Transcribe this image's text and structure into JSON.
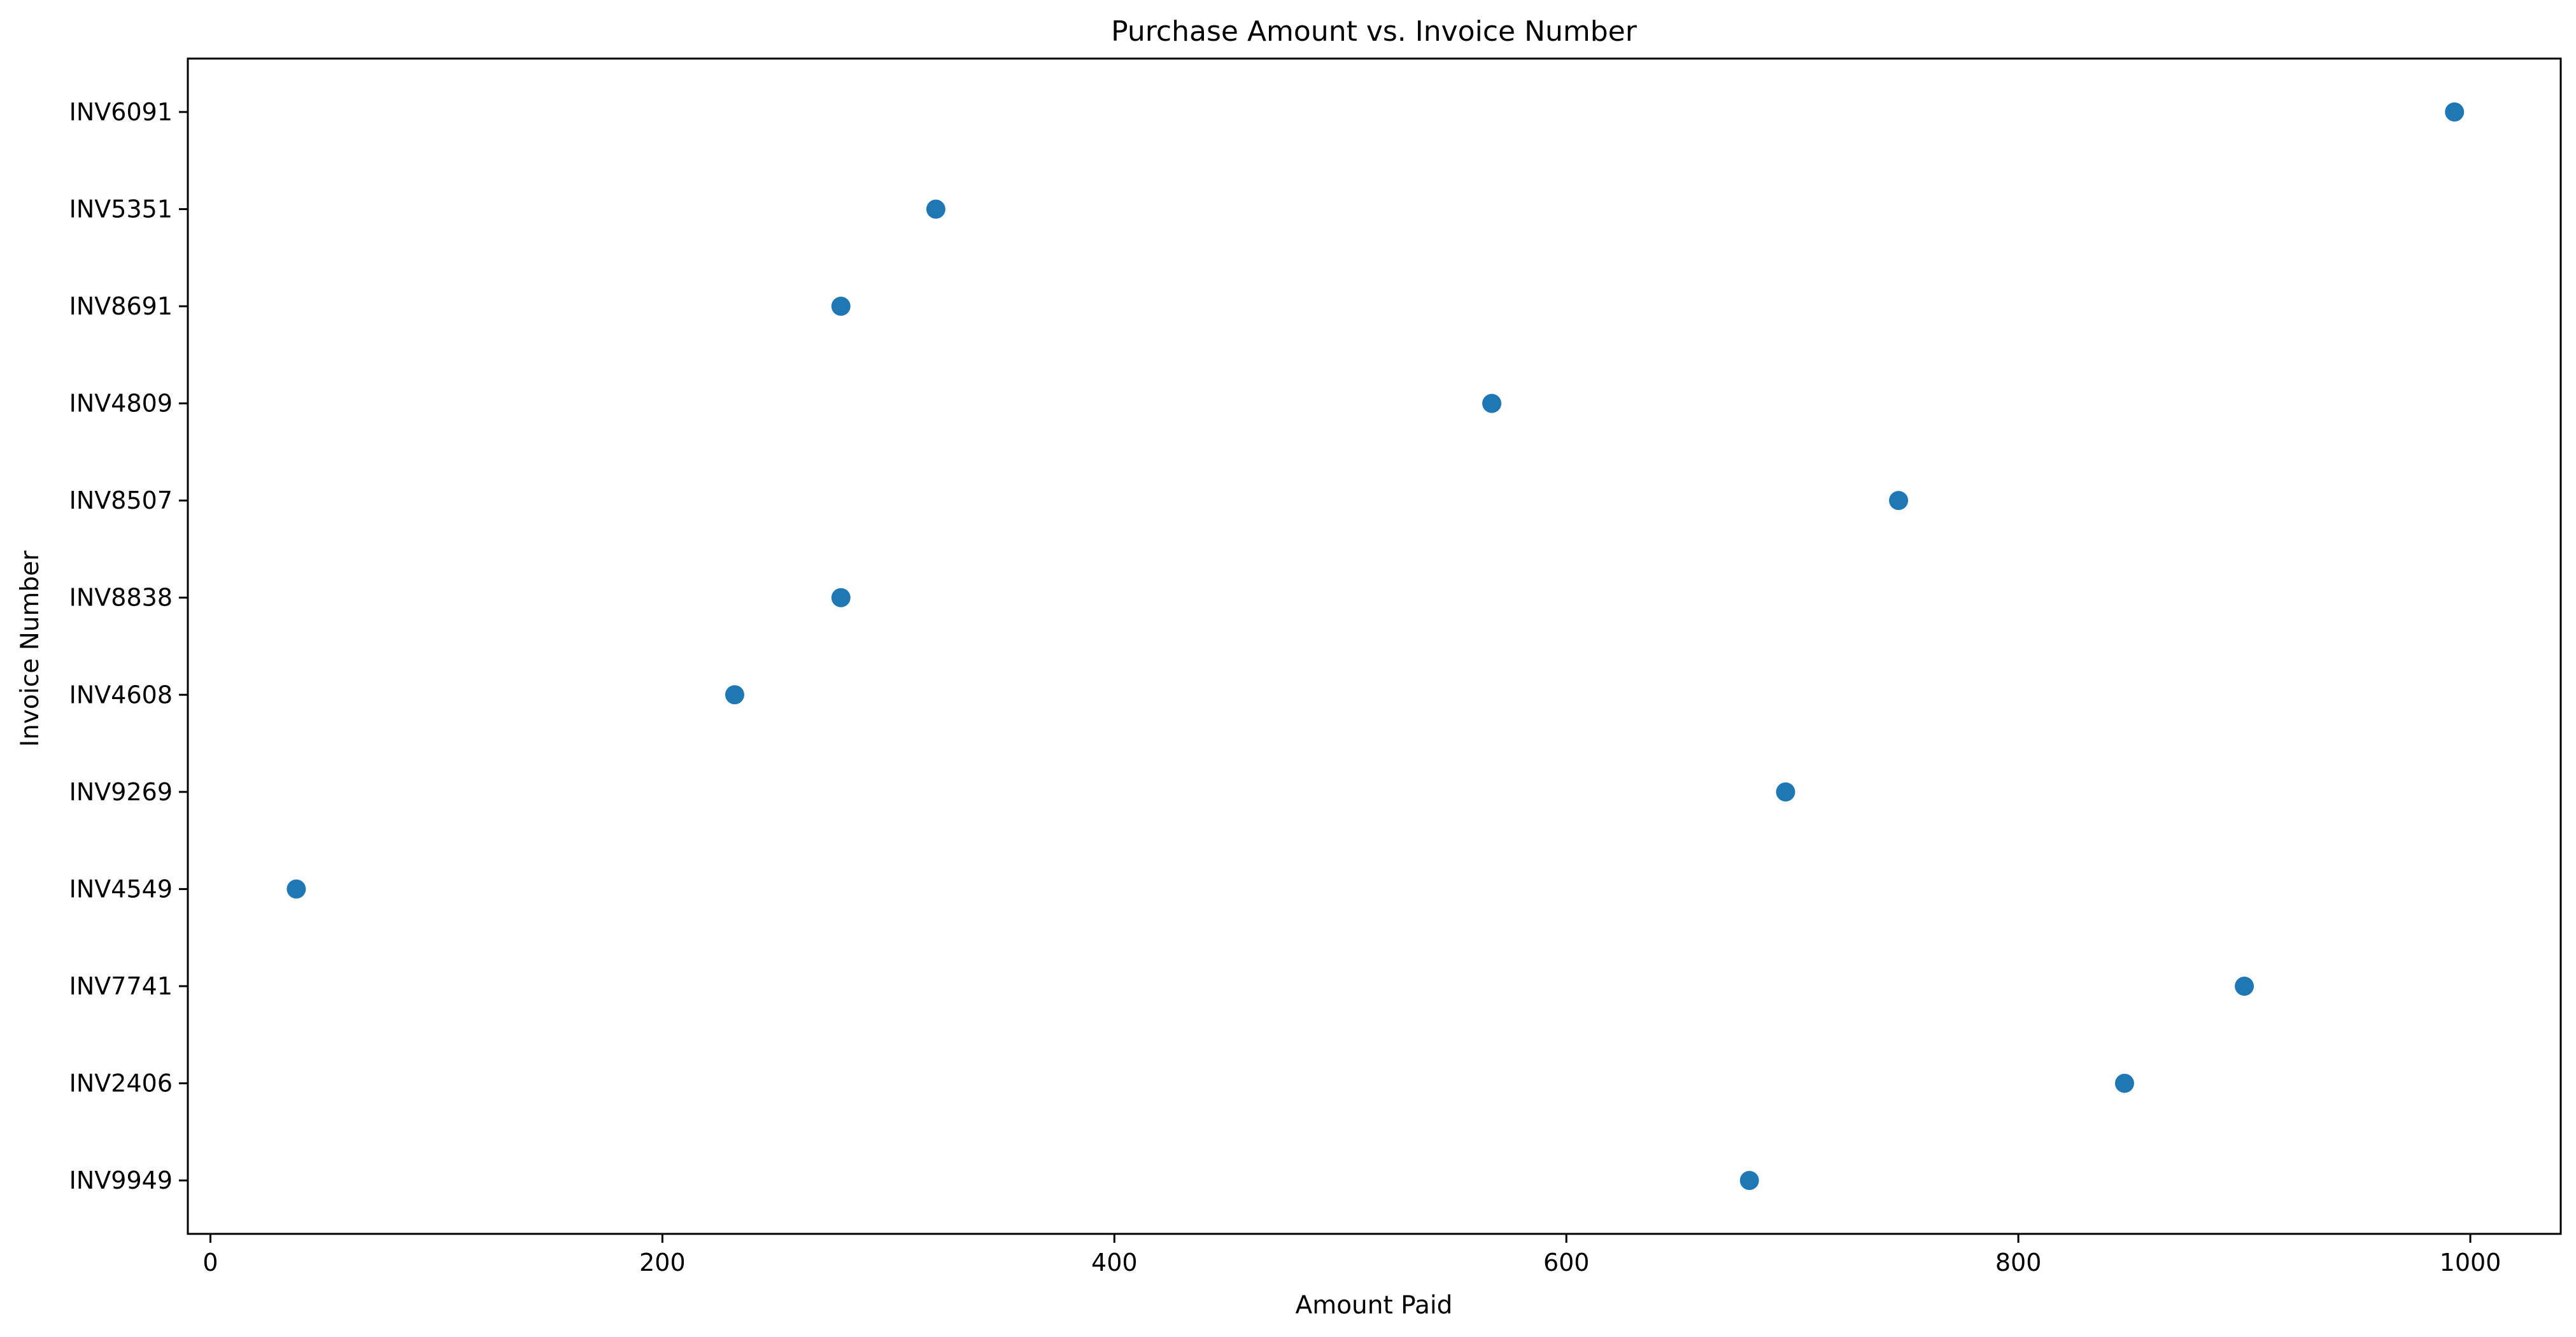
{
  "chart_data": {
    "type": "scatter",
    "title": "Purchase Amount vs. Invoice Number",
    "xlabel": "Amount Paid",
    "ylabel": "Invoice Number",
    "xlim": [
      -10,
      1040
    ],
    "xticks": [
      0,
      200,
      400,
      600,
      800,
      1000
    ],
    "categories": [
      "INV9949",
      "INV2406",
      "INV7741",
      "INV4549",
      "INV9269",
      "INV4608",
      "INV8838",
      "INV8507",
      "INV4809",
      "INV8691",
      "INV5351",
      "INV6091"
    ],
    "points": [
      {
        "x": 681,
        "y": "INV9949"
      },
      {
        "x": 847,
        "y": "INV2406"
      },
      {
        "x": 900,
        "y": "INV7741"
      },
      {
        "x": 38,
        "y": "INV4549"
      },
      {
        "x": 697,
        "y": "INV9269"
      },
      {
        "x": 232,
        "y": "INV4608"
      },
      {
        "x": 279,
        "y": "INV8838"
      },
      {
        "x": 747,
        "y": "INV8507"
      },
      {
        "x": 567,
        "y": "INV4809"
      },
      {
        "x": 279,
        "y": "INV8691"
      },
      {
        "x": 321,
        "y": "INV5351"
      },
      {
        "x": 993,
        "y": "INV6091"
      }
    ],
    "grid": false,
    "marker_color": "#1f77b4"
  }
}
